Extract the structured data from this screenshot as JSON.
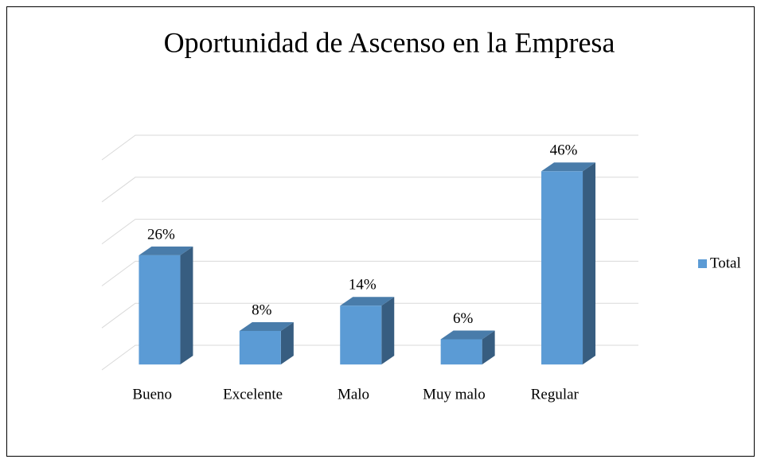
{
  "chart_data": {
    "type": "bar3d",
    "title": "Oportunidad de Ascenso en la Empresa",
    "categories": [
      "Bueno",
      "Excelente",
      "Malo",
      "Muy malo",
      "Regular"
    ],
    "series": [
      {
        "name": "Total",
        "color": "#5b9bd5",
        "values": [
          26,
          8,
          14,
          6,
          46
        ],
        "value_labels": [
          "26%",
          "8%",
          "14%",
          "6%",
          "46%"
        ]
      }
    ],
    "ylim": [
      0,
      50
    ],
    "yticks": [
      0,
      10,
      20,
      30,
      40,
      50
    ],
    "grid": true,
    "legend": "right"
  }
}
